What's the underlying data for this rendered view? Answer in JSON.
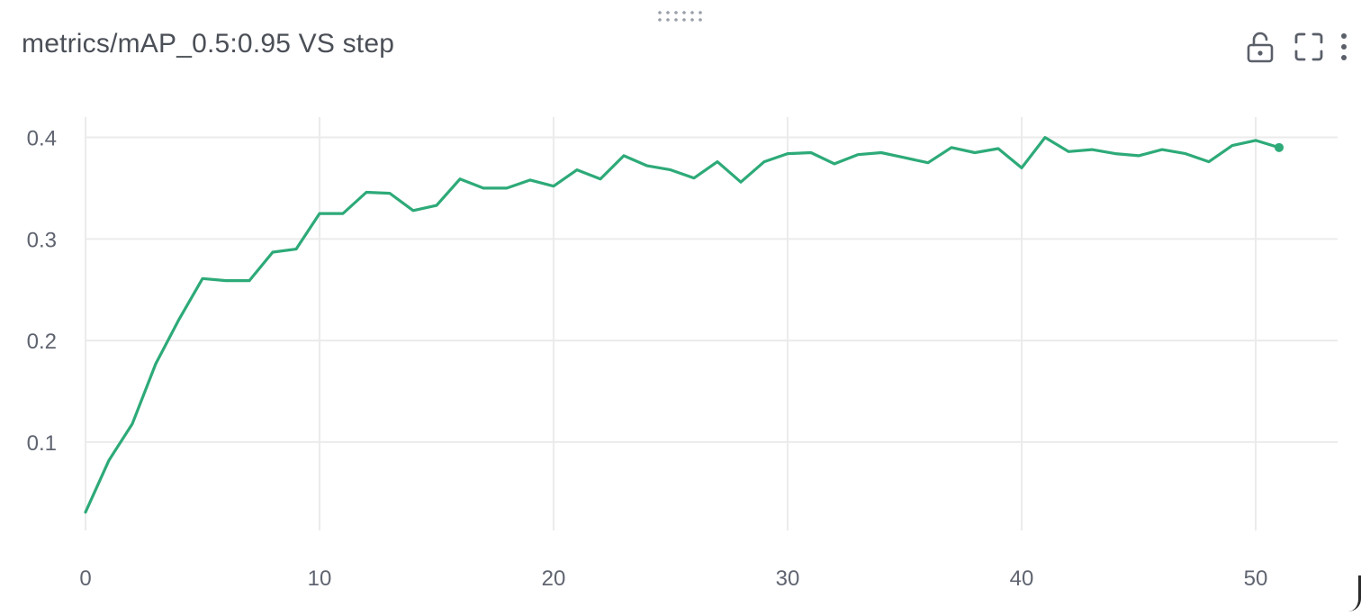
{
  "panel": {
    "title": "metrics/mAP_0.5:0.95 VS step",
    "drag_icon": "drag-grip-icon",
    "toolbar": [
      {
        "name": "lock-button",
        "icon": "unlock-icon"
      },
      {
        "name": "fullscreen-button",
        "icon": "expand-icon"
      },
      {
        "name": "more-options-button",
        "icon": "vertical-dots-icon"
      }
    ]
  },
  "colors": {
    "line": "#2daa78",
    "grid": "#ebebeb",
    "tick_text": "#5f6470",
    "title": "#4b4f57",
    "icon": "#5a5f69"
  },
  "chart_data": {
    "type": "line",
    "title": "metrics/mAP_0.5:0.95 VS step",
    "xlabel": "",
    "ylabel": "",
    "xlim": [
      0,
      53.5
    ],
    "ylim": [
      0.013,
      0.42
    ],
    "xticks": [
      0,
      10,
      20,
      30,
      40,
      50
    ],
    "xtick_labels": [
      "0",
      "10",
      "20",
      "30",
      "40",
      "50"
    ],
    "yticks": [
      0.1,
      0.2,
      0.3,
      0.4
    ],
    "ytick_labels": [
      "0.1",
      "0.2",
      "0.3",
      "0.4"
    ],
    "grid": true,
    "legend": "none",
    "series": [
      {
        "color": "#2daa78",
        "x": [
          0,
          1,
          2,
          3,
          4,
          5,
          6,
          7,
          8,
          9,
          10,
          11,
          12,
          13,
          14,
          15,
          16,
          17,
          18,
          19,
          20,
          21,
          22,
          23,
          24,
          25,
          26,
          27,
          28,
          29,
          30,
          31,
          32,
          33,
          34,
          35,
          36,
          37,
          38,
          39,
          40,
          41,
          42,
          43,
          44,
          45,
          46,
          47,
          48,
          49,
          50,
          51
        ],
        "y": [
          0.031,
          0.082,
          0.118,
          0.177,
          0.221,
          0.261,
          0.259,
          0.259,
          0.287,
          0.29,
          0.325,
          0.325,
          0.346,
          0.345,
          0.328,
          0.333,
          0.359,
          0.35,
          0.35,
          0.358,
          0.352,
          0.368,
          0.359,
          0.382,
          0.372,
          0.368,
          0.36,
          0.376,
          0.356,
          0.376,
          0.384,
          0.385,
          0.374,
          0.383,
          0.385,
          0.38,
          0.375,
          0.39,
          0.385,
          0.389,
          0.37,
          0.4,
          0.386,
          0.388,
          0.384,
          0.382,
          0.388,
          0.384,
          0.376,
          0.392,
          0.397,
          0.39
        ],
        "end_marker": true
      }
    ]
  }
}
